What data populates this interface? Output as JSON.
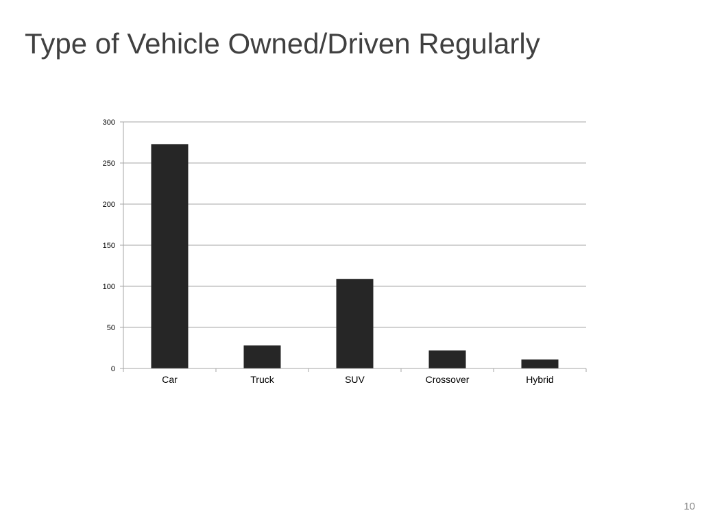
{
  "slide": {
    "title": "Type of Vehicle Owned/Driven Regularly",
    "page_number": "10"
  },
  "colors": {
    "title": "#404040",
    "bar": "#262626",
    "grid": "#a6a6a6",
    "axis": "#a6a6a6",
    "page_number": "#8c8c8c"
  },
  "chart_data": {
    "type": "bar",
    "categories": [
      "Car",
      "Truck",
      "SUV",
      "Crossover",
      "Hybrid"
    ],
    "values": [
      273,
      28,
      109,
      22,
      11
    ],
    "title": "",
    "xlabel": "",
    "ylabel": "",
    "ylim": [
      0,
      300
    ],
    "yticks": [
      0,
      50,
      100,
      150,
      200,
      250,
      300
    ],
    "grid": true,
    "legend": "none"
  }
}
